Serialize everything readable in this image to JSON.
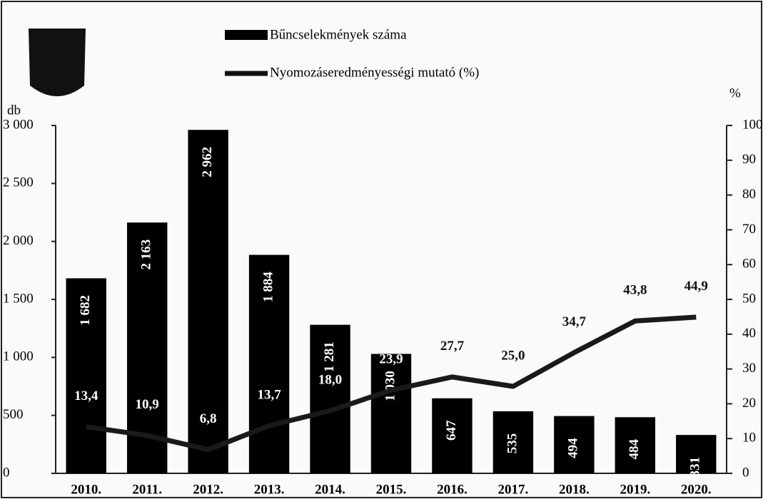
{
  "chart_data": {
    "type": "bar-line",
    "y_label": "db",
    "y2_label": "%",
    "categories": [
      "2010.",
      "2011.",
      "2012.",
      "2013.",
      "2014.",
      "2015.",
      "2016.",
      "2017.",
      "2018.",
      "2019.",
      "2020."
    ],
    "series": [
      {
        "name": "Bűncselekmények száma",
        "color": "#000000",
        "type": "bar",
        "values": [
          1682,
          2163,
          2962,
          1884,
          1281,
          1030,
          647,
          535,
          494,
          484,
          331
        ],
        "value_labels": [
          "1 682",
          "2 163",
          "2 962",
          "1 884",
          "1 281",
          "1 030",
          "647",
          "535",
          "494",
          "484",
          "331"
        ]
      },
      {
        "name": "Nyomozáseredményességi mutató (%)",
        "color": "#1a1a1a",
        "type": "line",
        "axis": "y2",
        "values": [
          13.4,
          10.9,
          6.8,
          13.7,
          18.0,
          23.9,
          27.7,
          25.0,
          34.7,
          43.8,
          44.9
        ],
        "value_labels": [
          "13,4",
          "10,9",
          "6,8",
          "13,7",
          "18,0",
          "23,9",
          "27,7",
          "25,0",
          "34,7",
          "43,8",
          "44,9"
        ]
      }
    ],
    "ylim": [
      0,
      3000
    ],
    "yticks": [
      0,
      500,
      {
        "value": 1000,
        "label": "1 000"
      },
      {
        "value": 1500,
        "label": "1 500"
      },
      {
        "value": 2000,
        "label": "2 000"
      },
      {
        "value": 2500,
        "label": "2 500"
      },
      {
        "value": 3000,
        "label": "3 000"
      }
    ],
    "y2lim": [
      0,
      100
    ],
    "y2ticks": [
      0,
      10,
      20,
      30,
      40,
      50,
      60,
      70,
      80,
      90,
      100
    ]
  }
}
